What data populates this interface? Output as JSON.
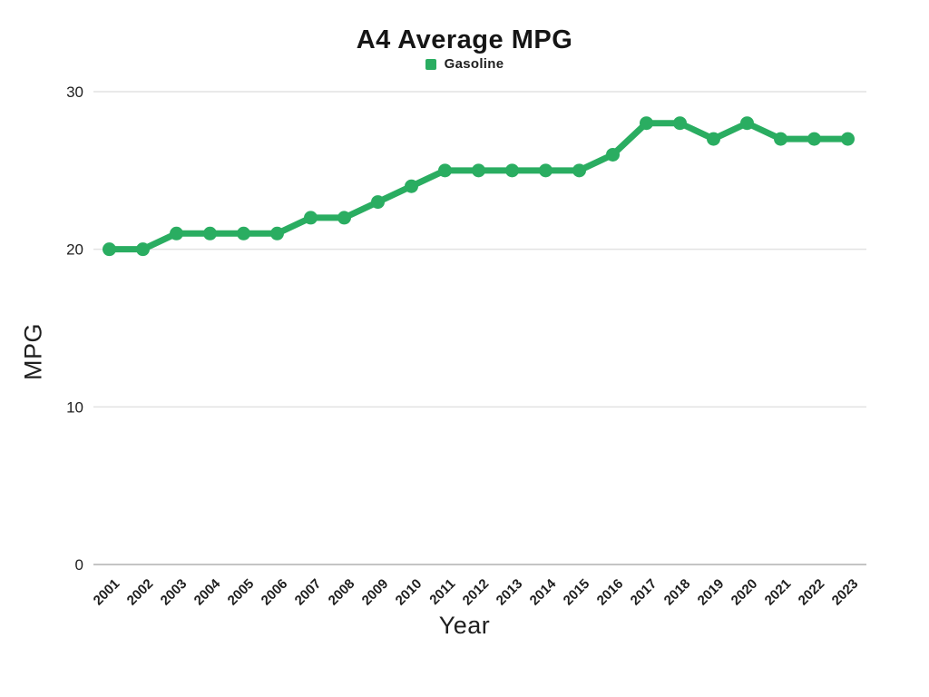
{
  "chart_data": {
    "type": "line",
    "title": "A4 Average MPG",
    "xlabel": "Year",
    "ylabel": "MPG",
    "categories": [
      "2001",
      "2002",
      "2003",
      "2004",
      "2005",
      "2006",
      "2007",
      "2008",
      "2009",
      "2010",
      "2011",
      "2012",
      "2013",
      "2014",
      "2015",
      "2016",
      "2017",
      "2018",
      "2019",
      "2020",
      "2021",
      "2022",
      "2023"
    ],
    "series": [
      {
        "name": "Gasoline",
        "color": "#2aad61",
        "values": [
          20,
          20,
          21,
          21,
          21,
          21,
          22,
          22,
          23,
          24,
          25,
          25,
          25,
          25,
          25,
          26,
          28,
          28,
          27,
          28,
          27,
          27,
          27
        ]
      }
    ],
    "ylim": [
      0,
      30
    ],
    "yticks": [
      0,
      10,
      20,
      30
    ],
    "grid": true,
    "legend_position": "top-center"
  },
  "colors": {
    "accent_green": "#2aad61",
    "gridline": "#e2e2e2",
    "zero_axis": "#b0b0b0",
    "tick_text": "#1f1f1f"
  }
}
